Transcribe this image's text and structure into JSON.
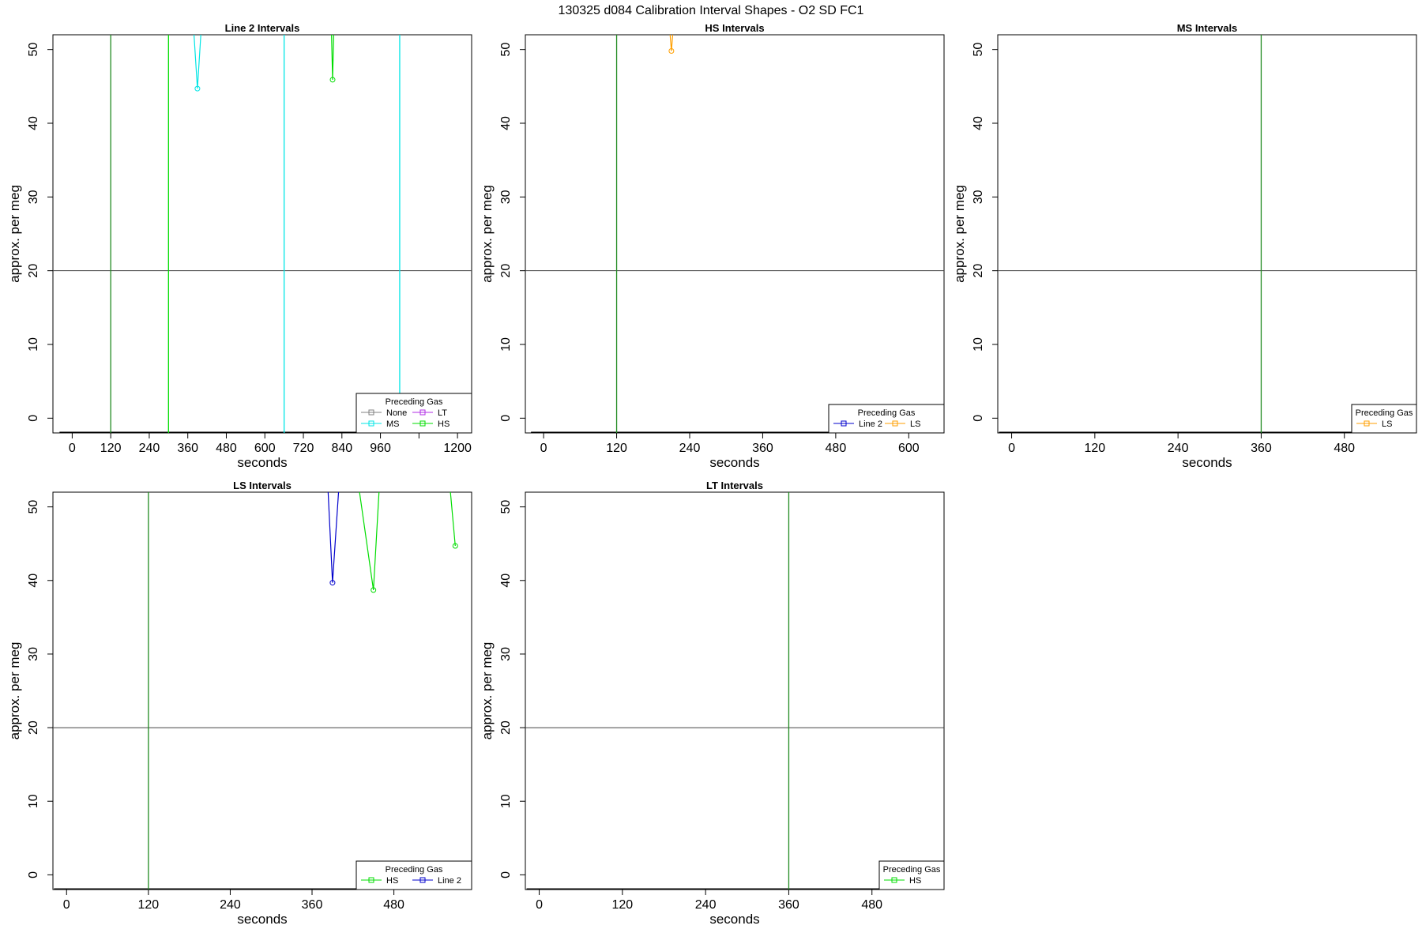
{
  "figure": {
    "title": "130325   d084   Calibration Interval Shapes - O2 SD FC1"
  },
  "colors": {
    "None": "#808080",
    "MS": "#00e5e5",
    "LT": "#b22ee5",
    "HS": "#00dd00",
    "Line 2": "#0000cc",
    "LS": "#ff9f00",
    "axis": "#000000",
    "refline": "#444444",
    "green_marker": "#228b22"
  },
  "chart_data": [
    {
      "type": "line",
      "title": "Line 2 Intervals",
      "xlabel": "seconds",
      "ylabel": "approx. per meg",
      "xlim": [
        -60,
        1244
      ],
      "ylim": [
        -2,
        52
      ],
      "xticks": [
        0,
        120,
        240,
        360,
        480,
        600,
        720,
        840,
        960,
        1080,
        1200
      ],
      "xtick_labels": [
        "0",
        "120",
        "240",
        "360",
        "480",
        "600",
        "720",
        "840",
        "960",
        "",
        "1200"
      ],
      "yticks": [
        0,
        10,
        20,
        30,
        40,
        50
      ],
      "hline": 20,
      "vlines": [
        {
          "x": 120,
          "series": "green_marker"
        },
        {
          "x": 300,
          "series": "HS"
        },
        {
          "x": 660,
          "series": "MS"
        },
        {
          "x": 1020,
          "series": "MS"
        }
      ],
      "series": [
        {
          "name": "MS",
          "x": [
            375,
            390,
            405
          ],
          "y": [
            55,
            44.7,
            55
          ],
          "markers": [
            1
          ]
        },
        {
          "name": "HS",
          "x": [
            806,
            811,
            816
          ],
          "y": [
            55,
            45.9,
            55
          ],
          "markers": [
            1
          ]
        },
        {
          "name": "MS",
          "x": [
            1020
          ],
          "y": [
            4
          ],
          "markers": []
        }
      ],
      "legend": {
        "title": "Preceding Gas",
        "position": "bottom-right",
        "columns": 2,
        "entries": [
          "None",
          "LT",
          "MS",
          "HS"
        ]
      }
    },
    {
      "type": "line",
      "title": "HS Intervals",
      "xlabel": "seconds",
      "ylabel": "approx. per meg",
      "xlim": [
        -30,
        658
      ],
      "ylim": [
        -2,
        52
      ],
      "xticks": [
        0,
        120,
        240,
        360,
        480,
        600
      ],
      "xtick_labels": [
        "0",
        "120",
        "240",
        "360",
        "480",
        "600"
      ],
      "yticks": [
        0,
        10,
        20,
        30,
        40,
        50
      ],
      "hline": 20,
      "vlines": [
        {
          "x": 120,
          "series": "green_marker"
        }
      ],
      "series": [
        {
          "name": "LS",
          "x": [
            205,
            210,
            215
          ],
          "y": [
            55,
            49.8,
            55
          ],
          "markers": [
            1
          ]
        }
      ],
      "legend": {
        "title": "Preceding Gas",
        "position": "bottom-right",
        "columns": 2,
        "entries": [
          "Line 2",
          "LS"
        ]
      }
    },
    {
      "type": "line",
      "title": "MS Intervals",
      "xlabel": "seconds",
      "ylabel": "approx. per meg",
      "xlim": [
        -20,
        584
      ],
      "ylim": [
        -2,
        52
      ],
      "xticks": [
        0,
        120,
        240,
        360,
        480
      ],
      "xtick_labels": [
        "0",
        "120",
        "240",
        "360",
        "480"
      ],
      "yticks": [
        0,
        10,
        20,
        30,
        40,
        50
      ],
      "hline": 20,
      "vlines": [
        {
          "x": 360,
          "series": "green_marker"
        }
      ],
      "series": [],
      "legend": {
        "title": "Preceding Gas",
        "position": "bottom-right",
        "columns": 1,
        "entries": [
          "LS"
        ]
      }
    },
    {
      "type": "line",
      "title": "LS Intervals",
      "xlabel": "seconds",
      "ylabel": "approx. per meg",
      "xlim": [
        -20,
        594
      ],
      "ylim": [
        -2,
        52
      ],
      "xticks": [
        0,
        120,
        240,
        360,
        480
      ],
      "xtick_labels": [
        "0",
        "120",
        "240",
        "360",
        "480"
      ],
      "yticks": [
        0,
        10,
        20,
        30,
        40,
        50
      ],
      "hline": 20,
      "vlines": [
        {
          "x": 120,
          "series": "green_marker"
        }
      ],
      "series": [
        {
          "name": "Line 2",
          "x": [
            382,
            390,
            401
          ],
          "y": [
            55,
            39.7,
            55
          ],
          "markers": [
            1
          ]
        },
        {
          "name": "HS",
          "x": [
            425,
            450,
            460
          ],
          "y": [
            55,
            38.7,
            55
          ],
          "markers": [
            1
          ]
        },
        {
          "name": "HS",
          "x": [
            560,
            570
          ],
          "y": [
            55,
            44.7
          ],
          "markers": [
            1
          ]
        }
      ],
      "legend": {
        "title": "Preceding Gas",
        "position": "bottom-right",
        "columns": 2,
        "entries": [
          "HS",
          "Line 2"
        ]
      }
    },
    {
      "type": "line",
      "title": "LT Intervals",
      "xlabel": "seconds",
      "ylabel": "approx. per meg",
      "xlim": [
        -20,
        584
      ],
      "ylim": [
        -2,
        52
      ],
      "xticks": [
        0,
        120,
        240,
        360,
        480
      ],
      "xtick_labels": [
        "0",
        "120",
        "240",
        "360",
        "480"
      ],
      "yticks": [
        0,
        10,
        20,
        30,
        40,
        50
      ],
      "hline": 20,
      "vlines": [
        {
          "x": 360,
          "series": "green_marker"
        }
      ],
      "series": [],
      "legend": {
        "title": "Preceding Gas",
        "position": "bottom-right",
        "columns": 1,
        "entries": [
          "HS"
        ]
      }
    }
  ]
}
